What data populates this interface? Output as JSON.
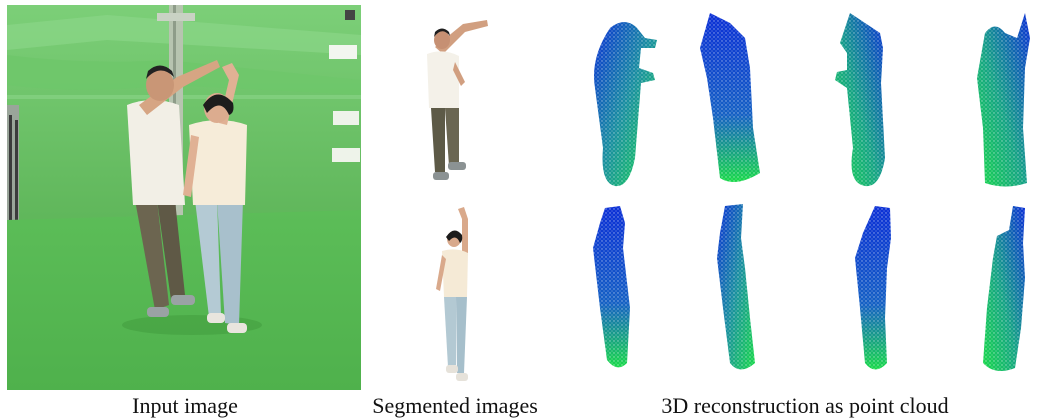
{
  "captions": {
    "input": "Input image",
    "segmented": "Segmented images",
    "reconstruction": "3D reconstruction as point cloud"
  },
  "colors": {
    "studio_green": "#6fbf62",
    "floor_green": "#5cbd58",
    "cloud_blue": "#0b2fd6",
    "cloud_green": "#19d94a"
  }
}
